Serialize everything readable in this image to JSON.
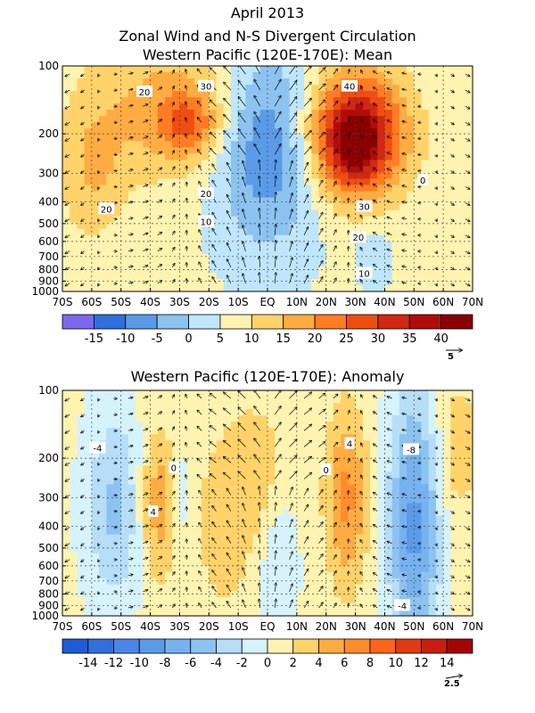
{
  "header": {
    "title_line1": "April 2013",
    "title_line2": "Zonal Wind and N-S Divergent Circulation"
  },
  "chart_data": [
    {
      "type": "heatmap",
      "title": "Western Pacific (120E-170E): Mean",
      "x_ticks": [
        "70S",
        "60S",
        "50S",
        "40S",
        "30S",
        "20S",
        "10S",
        "EQ",
        "10N",
        "20N",
        "30N",
        "40N",
        "50N",
        "60N",
        "70N"
      ],
      "x_values": [
        -70,
        -60,
        -50,
        -40,
        -30,
        -20,
        -10,
        0,
        10,
        20,
        30,
        40,
        50,
        60,
        70
      ],
      "y_ticks": [
        "100",
        "200",
        "300",
        "400",
        "500",
        "600",
        "700",
        "800",
        "900",
        "1000"
      ],
      "y_values": [
        100,
        200,
        300,
        400,
        500,
        600,
        700,
        800,
        900,
        1000
      ],
      "y_scale": "log-pressure",
      "xlim": [
        -70,
        70
      ],
      "ylim": [
        1000,
        100
      ],
      "colorbar": {
        "labels": [
          "-15",
          "-10",
          "-5",
          "0",
          "5",
          "10",
          "15",
          "20",
          "25",
          "30",
          "35",
          "40"
        ],
        "colors": [
          "#7b68ee",
          "#2f6fde",
          "#5a9be8",
          "#8cc3f0",
          "#bfe6fa",
          "#fff3b0",
          "#ffd36a",
          "#ffac42",
          "#ff7c24",
          "#ee4e12",
          "#d02812",
          "#b00c0c",
          "#8a0000"
        ]
      },
      "features": [
        {
          "label": "20",
          "lat": -33,
          "p": 150,
          "amp": 11,
          "w": 20,
          "h": 0.55
        },
        {
          "label": "30",
          "lat": -27,
          "p": 180,
          "amp": 14,
          "w": 7,
          "h": 0.22
        },
        {
          "label": "20",
          "lat": -60,
          "p": 300,
          "amp": 8,
          "w": 8,
          "h": 0.5
        },
        {
          "label": "40",
          "lat": 30,
          "p": 200,
          "amp": 33,
          "w": 12,
          "h": 0.45
        },
        {
          "label": "",
          "lat": 30,
          "p": 230,
          "amp": 12,
          "w": 6,
          "h": 0.25
        },
        {
          "label": "",
          "lat": 0,
          "p": 220,
          "amp": -17,
          "w": 13,
          "h": 0.7
        },
        {
          "label": "10",
          "lat": 36,
          "p": 700,
          "amp": -6,
          "w": 4,
          "h": 0.2
        }
      ],
      "contour_labels": [
        {
          "text": "20",
          "lat": -42,
          "p": 130
        },
        {
          "text": "30",
          "lat": -21,
          "p": 123
        },
        {
          "text": "20",
          "lat": -55,
          "p": 430
        },
        {
          "text": "20",
          "lat": -21,
          "p": 368
        },
        {
          "text": "10",
          "lat": -21,
          "p": 490
        },
        {
          "text": "40",
          "lat": 28,
          "p": 123
        },
        {
          "text": "30",
          "lat": 33,
          "p": 420
        },
        {
          "text": "20",
          "lat": 31,
          "p": 575
        },
        {
          "text": "10",
          "lat": 33,
          "p": 830
        },
        {
          "text": "0",
          "lat": 53,
          "p": 320
        }
      ],
      "vector_reference": "5"
    },
    {
      "type": "heatmap",
      "title": "Western Pacific (120E-170E): Anomaly",
      "x_ticks": [
        "70S",
        "60S",
        "50S",
        "40S",
        "30S",
        "20S",
        "10S",
        "EQ",
        "10N",
        "20N",
        "30N",
        "40N",
        "50N",
        "60N",
        "70N"
      ],
      "x_values": [
        -70,
        -60,
        -50,
        -40,
        -30,
        -20,
        -10,
        0,
        10,
        20,
        30,
        40,
        50,
        60,
        70
      ],
      "y_ticks": [
        "100",
        "200",
        "300",
        "400",
        "500",
        "600",
        "700",
        "800",
        "900",
        "1000"
      ],
      "y_values": [
        100,
        200,
        300,
        400,
        500,
        600,
        700,
        800,
        900,
        1000
      ],
      "y_scale": "log-pressure",
      "xlim": [
        -70,
        70
      ],
      "ylim": [
        1000,
        100
      ],
      "colorbar": {
        "labels": [
          "-14",
          "-12",
          "-10",
          "-8",
          "-6",
          "-4",
          "-2",
          "0",
          "2",
          "4",
          "6",
          "8",
          "10",
          "12",
          "14"
        ],
        "colors": [
          "#1f5bd6",
          "#2f6fde",
          "#4a86e6",
          "#5a9be8",
          "#76b2ef",
          "#8cc3f0",
          "#b6def8",
          "#d6f2fb",
          "#fff3b0",
          "#ffd36a",
          "#ffac42",
          "#ff8c2a",
          "#ff6418",
          "#e23a10",
          "#c81e0e",
          "#a40404"
        ]
      },
      "features": [
        {
          "label": "-4",
          "lat": -52,
          "p": 330,
          "amp": -5,
          "w": 7,
          "h": 0.7
        },
        {
          "label": "4",
          "lat": -37,
          "p": 320,
          "amp": 5,
          "w": 5,
          "h": 0.55
        },
        {
          "label": "",
          "lat": -30,
          "p": 300,
          "amp": -3,
          "w": 3,
          "h": 0.5
        },
        {
          "label": "",
          "lat": -15,
          "p": 400,
          "amp": 2,
          "w": 10,
          "h": 0.9
        },
        {
          "label": "",
          "lat": -2,
          "p": 250,
          "amp": 3,
          "w": 7,
          "h": 0.5
        },
        {
          "label": "",
          "lat": 3,
          "p": 500,
          "amp": -3,
          "w": 5,
          "h": 0.6
        },
        {
          "label": "4",
          "lat": 27,
          "p": 300,
          "amp": 6,
          "w": 5,
          "h": 0.65
        },
        {
          "label": "-8",
          "lat": 50,
          "p": 400,
          "amp": -9,
          "w": 6,
          "h": 0.95
        },
        {
          "label": "",
          "lat": 65,
          "p": 180,
          "amp": 3,
          "w": 5,
          "h": 0.5
        }
      ],
      "contour_labels": [
        {
          "text": "-4",
          "lat": -58,
          "p": 180
        },
        {
          "text": "0",
          "lat": -32,
          "p": 220
        },
        {
          "text": "4",
          "lat": -39,
          "p": 345
        },
        {
          "text": "4",
          "lat": 28,
          "p": 172
        },
        {
          "text": "0",
          "lat": 20,
          "p": 225
        },
        {
          "text": "-8",
          "lat": 49,
          "p": 183
        },
        {
          "text": "-4",
          "lat": 46,
          "p": 900
        }
      ],
      "vector_reference": "2.5"
    }
  ]
}
